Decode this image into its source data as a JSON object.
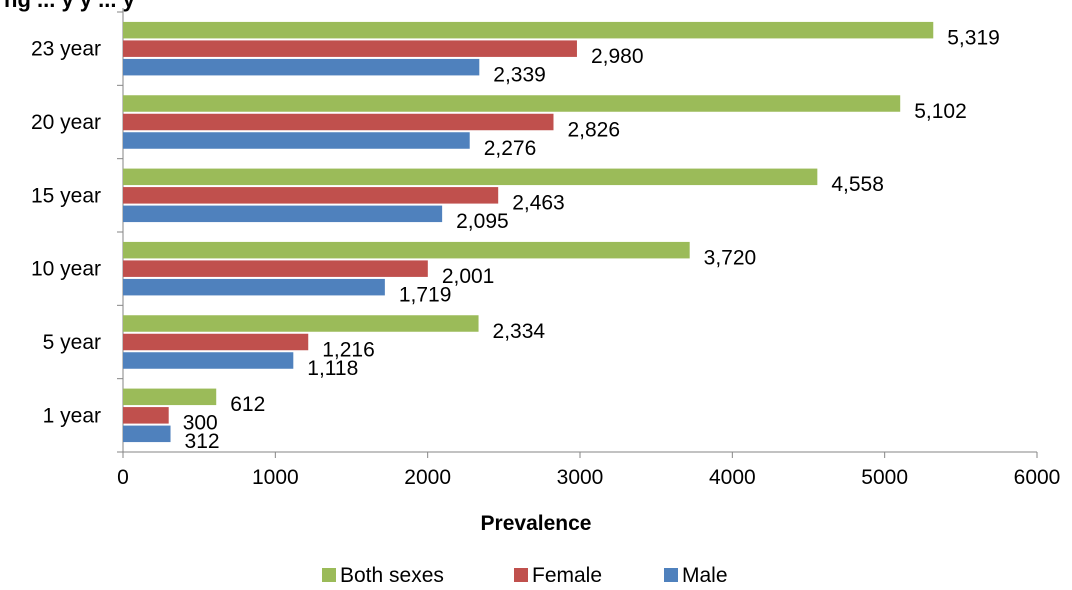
{
  "chart_data": {
    "type": "bar",
    "orientation": "horizontal",
    "title": "ng ... y y ... y",
    "categories": [
      "1 year",
      "5 year",
      "10 year",
      "15 year",
      "20 year",
      "23 year"
    ],
    "series": [
      {
        "name": "Both sexes",
        "color": "#9bbb59",
        "values": [
          612,
          2334,
          3720,
          4558,
          5102,
          5319
        ]
      },
      {
        "name": "Female",
        "color": "#c0504d",
        "values": [
          300,
          1216,
          2001,
          2463,
          2826,
          2980
        ]
      },
      {
        "name": "Male",
        "color": "#4f81bd",
        "values": [
          312,
          1118,
          1719,
          2095,
          2276,
          2339
        ]
      }
    ],
    "data_labels": {
      "Both sexes": [
        "612",
        "2,334",
        "3,720",
        "4,558",
        "5,102",
        "5,319"
      ],
      "Female": [
        "300",
        "1,216",
        "2,001",
        "2,463",
        "2,826",
        "2,980"
      ],
      "Male": [
        "312",
        "1,118",
        "1,719",
        "2,095",
        "2,276",
        "2,339"
      ]
    },
    "xlabel": "Prevalence",
    "ylabel": "",
    "xlim": [
      0,
      6000
    ],
    "xticks": [
      "0",
      "1000",
      "2000",
      "3000",
      "4000",
      "5000",
      "6000"
    ],
    "grid": false,
    "legend_position": "bottom"
  }
}
